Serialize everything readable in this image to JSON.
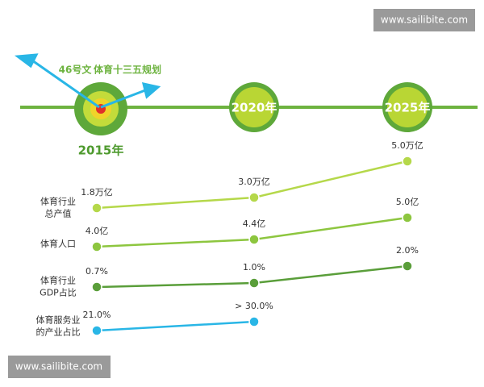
{
  "watermarks": [
    "www.sailibite.com",
    "www.sailibite.com"
  ],
  "timeline": {
    "milestones": [
      "2015年",
      "2020年",
      "2025年"
    ],
    "annotations": [
      "46号文",
      "体育十三五规划"
    ]
  },
  "rows": [
    {
      "label": [
        "体育行业",
        "总产值"
      ],
      "values": [
        "1.8万亿",
        "3.0万亿",
        "5.0万亿"
      ]
    },
    {
      "label": [
        "体育人口"
      ],
      "values": [
        "4.0亿",
        "4.4亿",
        "5.0亿"
      ]
    },
    {
      "label": [
        "体育行业",
        "GDP占比"
      ],
      "values": [
        "0.7%",
        "1.0%",
        "2.0%"
      ]
    },
    {
      "label": [
        "体育服务业",
        "的产业占比"
      ],
      "values": [
        "21.0%",
        "> 30.0%"
      ]
    }
  ]
}
